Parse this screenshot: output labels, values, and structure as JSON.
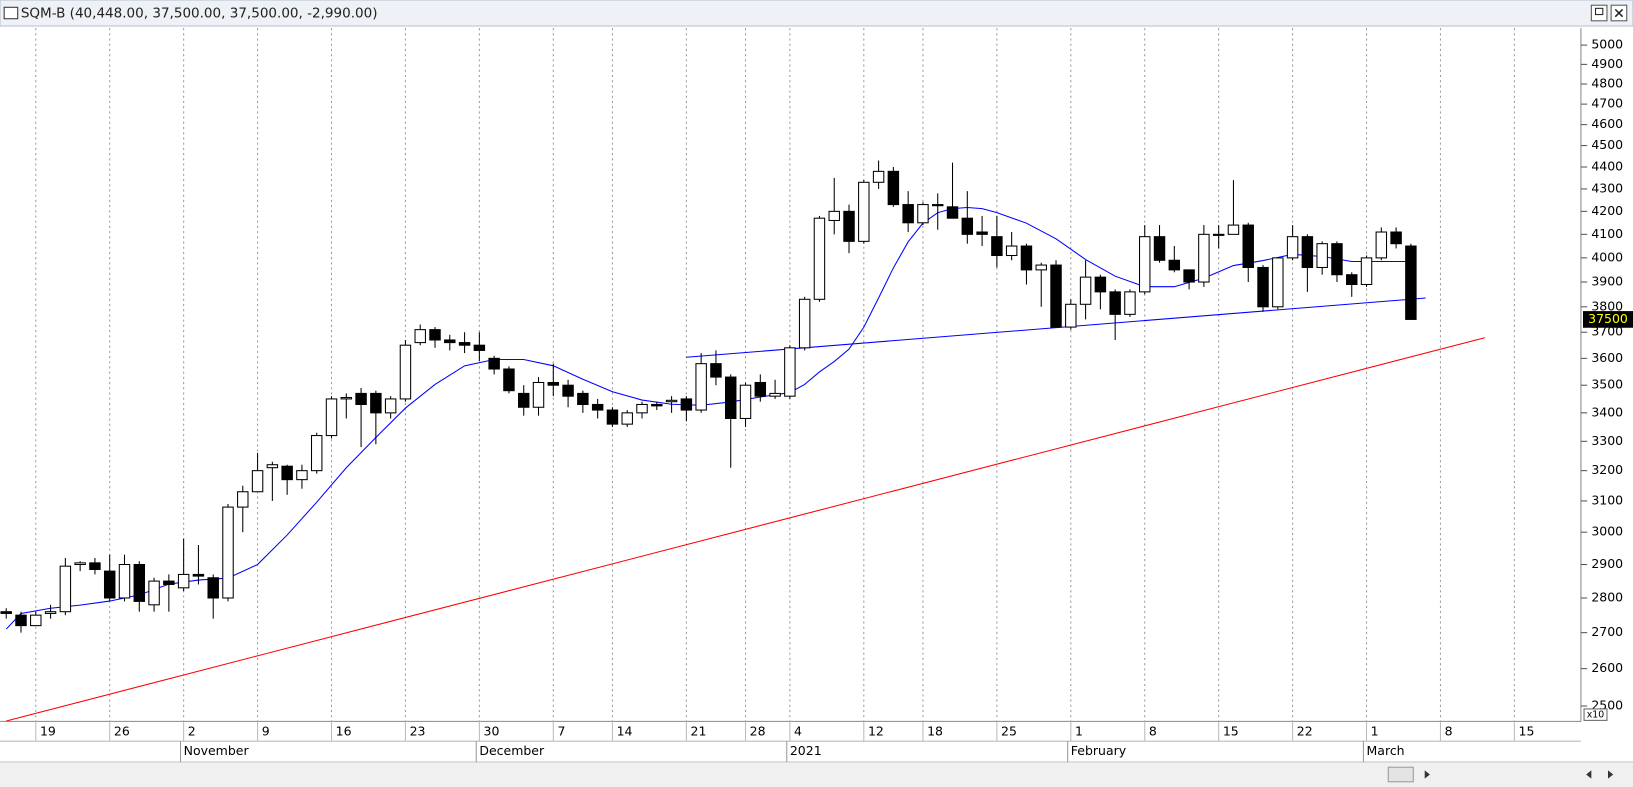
{
  "chart_data": {
    "type": "candlestick",
    "title": "SQM-B (40,448.00, 37,500.00, 37,500.00, -2,990.00)",
    "log_scale": true,
    "axis_multiplier": "x10",
    "xlim": [
      -0.42,
      106.5
    ],
    "ylim": [
      2460,
      5090
    ],
    "yticks": [
      2500,
      2600,
      2700,
      2800,
      2900,
      3000,
      3100,
      3200,
      3300,
      3400,
      3500,
      3600,
      3700,
      3800,
      3900,
      4000,
      4100,
      4200,
      4300,
      4400,
      4500,
      4600,
      4700,
      4800,
      4900,
      5000
    ],
    "xticks": [
      {
        "value": 2,
        "label": "19"
      },
      {
        "value": 7,
        "label": "26"
      },
      {
        "value": 12,
        "label": "2"
      },
      {
        "value": 17,
        "label": "9"
      },
      {
        "value": 22,
        "label": "16"
      },
      {
        "value": 27,
        "label": "23"
      },
      {
        "value": 32,
        "label": "30"
      },
      {
        "value": 37,
        "label": "7"
      },
      {
        "value": 41,
        "label": "14"
      },
      {
        "value": 46,
        "label": "21"
      },
      {
        "value": 50,
        "label": "28"
      },
      {
        "value": 53,
        "label": "4"
      },
      {
        "value": 58,
        "label": "12"
      },
      {
        "value": 62,
        "label": "18"
      },
      {
        "value": 67,
        "label": "25"
      },
      {
        "value": 72,
        "label": "1"
      },
      {
        "value": 77,
        "label": "8"
      },
      {
        "value": 82,
        "label": "15"
      },
      {
        "value": 87,
        "label": "22"
      },
      {
        "value": 92,
        "label": "1"
      },
      {
        "value": 97,
        "label": "8"
      },
      {
        "value": 102,
        "label": "15"
      }
    ],
    "month_labels": [
      {
        "value": 12,
        "label": "November"
      },
      {
        "value": 32,
        "label": "December"
      },
      {
        "value": 53,
        "label": "2021"
      },
      {
        "value": 72,
        "label": "February"
      },
      {
        "value": 92,
        "label": "March"
      }
    ],
    "grid": true,
    "up_color": "#ffffff",
    "down_color": "#000000",
    "open": [
      2760,
      2750,
      2720,
      2755,
      2760,
      2900,
      2905,
      2880,
      2800,
      2900,
      2780,
      2850,
      2830,
      2870,
      2860,
      2800,
      3080,
      3130,
      3210,
      3215,
      3170,
      3200,
      3320,
      3450,
      3470,
      3470,
      3400,
      3450,
      3660,
      3710,
      3670,
      3660,
      3650,
      3600,
      3560,
      3470,
      3420,
      3510,
      3500,
      3470,
      3430,
      3410,
      3360,
      3400,
      3430,
      3440,
      3450,
      3410,
      3580,
      3530,
      3380,
      3510,
      3460,
      3460,
      3640,
      3830,
      4160,
      4200,
      4070,
      4330,
      4380,
      4230,
      4150,
      4230,
      4220,
      4170,
      4110,
      4090,
      4010,
      4050,
      3950,
      3970,
      3720,
      3810,
      3920,
      3860,
      3770,
      3860,
      4090,
      3990,
      3950,
      3900,
      4100,
      4100,
      4140,
      3960,
      3800,
      4000,
      4090,
      3960,
      4060,
      3930,
      3890,
      4000,
      4110,
      4050
    ],
    "high": [
      2770,
      2760,
      2760,
      2780,
      2920,
      2910,
      2920,
      2930,
      2930,
      2910,
      2860,
      2870,
      2980,
      2960,
      2870,
      3090,
      3150,
      3260,
      3230,
      3220,
      3220,
      3330,
      3460,
      3470,
      3490,
      3480,
      3460,
      3670,
      3730,
      3720,
      3690,
      3700,
      3700,
      3610,
      3570,
      3500,
      3530,
      3580,
      3520,
      3480,
      3450,
      3420,
      3410,
      3440,
      3440,
      3460,
      3460,
      3620,
      3630,
      3540,
      3510,
      3540,
      3520,
      3650,
      3840,
      4180,
      4350,
      4230,
      4340,
      4430,
      4400,
      4290,
      4240,
      4280,
      4420,
      4290,
      4180,
      4180,
      4110,
      4060,
      3980,
      3990,
      3830,
      3990,
      3930,
      3870,
      3870,
      4140,
      4140,
      4050,
      3950,
      4140,
      4140,
      4340,
      4150,
      3970,
      4000,
      4140,
      4100,
      4070,
      4070,
      3940,
      4010,
      4130,
      4130,
      4060
    ],
    "low": [
      2740,
      2700,
      2720,
      2740,
      2750,
      2880,
      2870,
      2790,
      2790,
      2760,
      2760,
      2760,
      2820,
      2840,
      2740,
      2790,
      3000,
      3130,
      3100,
      3120,
      3140,
      3190,
      3310,
      3380,
      3280,
      3290,
      3380,
      3440,
      3650,
      3640,
      3630,
      3620,
      3590,
      3540,
      3470,
      3390,
      3390,
      3460,
      3420,
      3400,
      3380,
      3350,
      3350,
      3380,
      3410,
      3400,
      3370,
      3400,
      3500,
      3210,
      3350,
      3440,
      3450,
      3450,
      3630,
      3820,
      4100,
      4020,
      4060,
      4300,
      4220,
      4110,
      4140,
      4120,
      4170,
      4060,
      4050,
      3960,
      3990,
      3890,
      3800,
      3720,
      3710,
      3750,
      3790,
      3670,
      3760,
      3850,
      3980,
      3940,
      3870,
      3880,
      4040,
      4100,
      3900,
      3780,
      3790,
      3990,
      3860,
      3930,
      3900,
      3840,
      3880,
      3990,
      4040,
      3750
    ],
    "close": [
      2755,
      2720,
      2750,
      2760,
      2895,
      2905,
      2885,
      2800,
      2900,
      2790,
      2850,
      2840,
      2870,
      2865,
      2800,
      3080,
      3130,
      3200,
      3220,
      3170,
      3200,
      3320,
      3450,
      3455,
      3430,
      3400,
      3450,
      3650,
      3710,
      3670,
      3660,
      3650,
      3630,
      3560,
      3480,
      3420,
      3510,
      3500,
      3460,
      3430,
      3410,
      3360,
      3400,
      3430,
      3425,
      3445,
      3410,
      3580,
      3530,
      3380,
      3500,
      3460,
      3470,
      3640,
      3830,
      4170,
      4200,
      4070,
      4330,
      4380,
      4230,
      4150,
      4230,
      4225,
      4170,
      4100,
      4100,
      4010,
      4050,
      3950,
      3970,
      3720,
      3810,
      3920,
      3860,
      3770,
      3860,
      4090,
      3990,
      3950,
      3900,
      4100,
      4100,
      4140,
      3960,
      3800,
      4000,
      4090,
      3960,
      4060,
      3930,
      3890,
      4000,
      4110,
      4060,
      3750
    ],
    "moving_average": {
      "color": "#0000ff",
      "x": [
        0,
        1,
        3,
        5,
        7,
        9,
        11,
        13,
        15,
        17,
        19,
        21,
        23,
        25,
        27,
        29,
        31,
        33,
        35,
        37,
        39,
        41,
        43,
        45,
        47,
        49,
        51,
        53,
        54,
        55,
        56,
        57,
        58,
        59,
        60,
        61,
        62,
        63,
        64,
        65,
        66,
        67,
        69,
        71,
        73,
        75,
        77,
        79,
        81,
        83,
        85,
        87,
        89,
        91,
        93,
        95
      ],
      "values": [
        2710,
        2755,
        2770,
        2779,
        2791,
        2809,
        2841,
        2853,
        2859,
        2900,
        2991,
        3096,
        3210,
        3313,
        3417,
        3503,
        3572,
        3596,
        3596,
        3572,
        3522,
        3476,
        3446,
        3431,
        3427,
        3439,
        3457,
        3473,
        3503,
        3549,
        3588,
        3635,
        3719,
        3835,
        3958,
        4068,
        4148,
        4194,
        4212,
        4217,
        4212,
        4194,
        4148,
        4081,
        3993,
        3924,
        3881,
        3881,
        3916,
        3968,
        3989,
        4015,
        4006,
        3985,
        3985,
        3985
      ]
    },
    "trendlines": [
      {
        "color": "#0000ff",
        "x": [
          46,
          96
        ],
        "values": [
          3604,
          3835
        ]
      },
      {
        "color": "#ff0000",
        "x": [
          0,
          100
        ],
        "values": [
          2461,
          3679
        ]
      }
    ],
    "last_price": {
      "value": 3750,
      "label": "37500"
    }
  }
}
